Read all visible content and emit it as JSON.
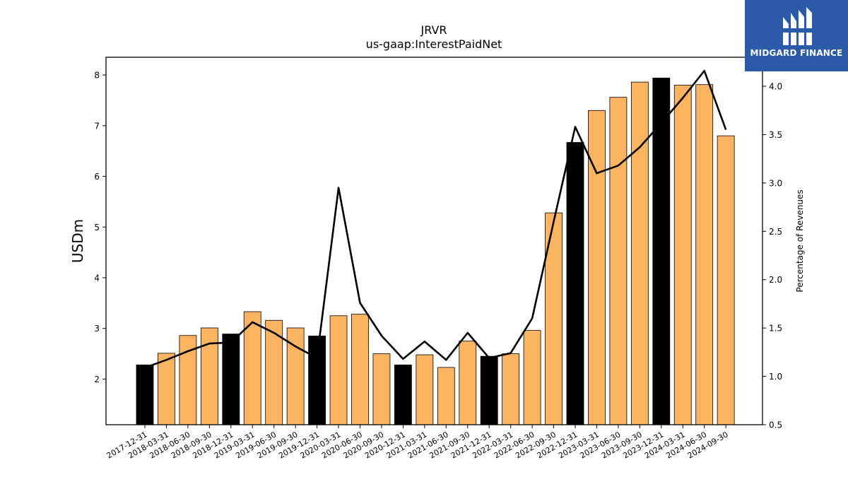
{
  "chart_data": {
    "type": "bar+line",
    "title": "JRVR",
    "subtitle": "us-gaap:InterestPaidNet",
    "ylabel": "USDm",
    "ylabel_right": "Percentage of Revenues",
    "ylim": [
      1.1,
      8.35
    ],
    "ylim_right": [
      0.5,
      4.3
    ],
    "yticks": [
      2,
      3,
      4,
      5,
      6,
      7,
      8
    ],
    "yticks_right": [
      "0.5",
      "1.0",
      "1.5",
      "2.0",
      "2.5",
      "3.0",
      "3.5",
      "4.0"
    ],
    "categories": [
      "2017-12-31",
      "2018-03-31",
      "2018-06-30",
      "2018-09-30",
      "2018-12-31",
      "2019-03-31",
      "2019-06-30",
      "2019-09-30",
      "2019-12-31",
      "2020-03-31",
      "2020-06-30",
      "2020-09-30",
      "2020-12-31",
      "2021-03-31",
      "2021-06-30",
      "2021-09-30",
      "2021-12-31",
      "2022-03-31",
      "2022-06-30",
      "2022-09-30",
      "2022-12-31",
      "2023-03-31",
      "2023-06-30",
      "2023-09-30",
      "2023-12-31",
      "2024-03-31",
      "2024-06-30",
      "2024-09-30"
    ],
    "series": [
      {
        "kind": "bar",
        "axis": "left",
        "values": [
          2.28,
          2.51,
          2.86,
          3.01,
          2.89,
          3.33,
          3.16,
          3.01,
          2.85,
          3.25,
          3.28,
          2.5,
          2.28,
          2.48,
          2.23,
          2.75,
          2.45,
          2.5,
          2.96,
          5.28,
          6.67,
          7.3,
          7.56,
          7.86,
          7.94,
          7.8,
          7.81,
          6.8
        ],
        "colors": [
          "#000000",
          "#fdb462",
          "#fdb462",
          "#fdb462",
          "#000000",
          "#fdb462",
          "#fdb462",
          "#fdb462",
          "#000000",
          "#fdb462",
          "#fdb462",
          "#fdb462",
          "#000000",
          "#fdb462",
          "#fdb462",
          "#fdb462",
          "#000000",
          "#fdb462",
          "#fdb462",
          "#fdb462",
          "#000000",
          "#fdb462",
          "#fdb462",
          "#fdb462",
          "#000000",
          "#fdb462",
          "#fdb462",
          "#fdb462"
        ]
      },
      {
        "kind": "line",
        "axis": "right",
        "color": "#000000",
        "values": [
          1.09,
          1.17,
          1.26,
          1.34,
          1.35,
          1.56,
          1.45,
          1.31,
          1.19,
          2.95,
          1.76,
          1.42,
          1.18,
          1.36,
          1.17,
          1.45,
          1.19,
          1.24,
          1.6,
          2.6,
          3.58,
          3.1,
          3.18,
          3.37,
          3.62,
          3.88,
          4.16,
          3.55
        ]
      }
    ],
    "grid": false
  },
  "logo": {
    "text": "MIDGARD FINANCE",
    "icon": "midgard-logo-icon"
  }
}
